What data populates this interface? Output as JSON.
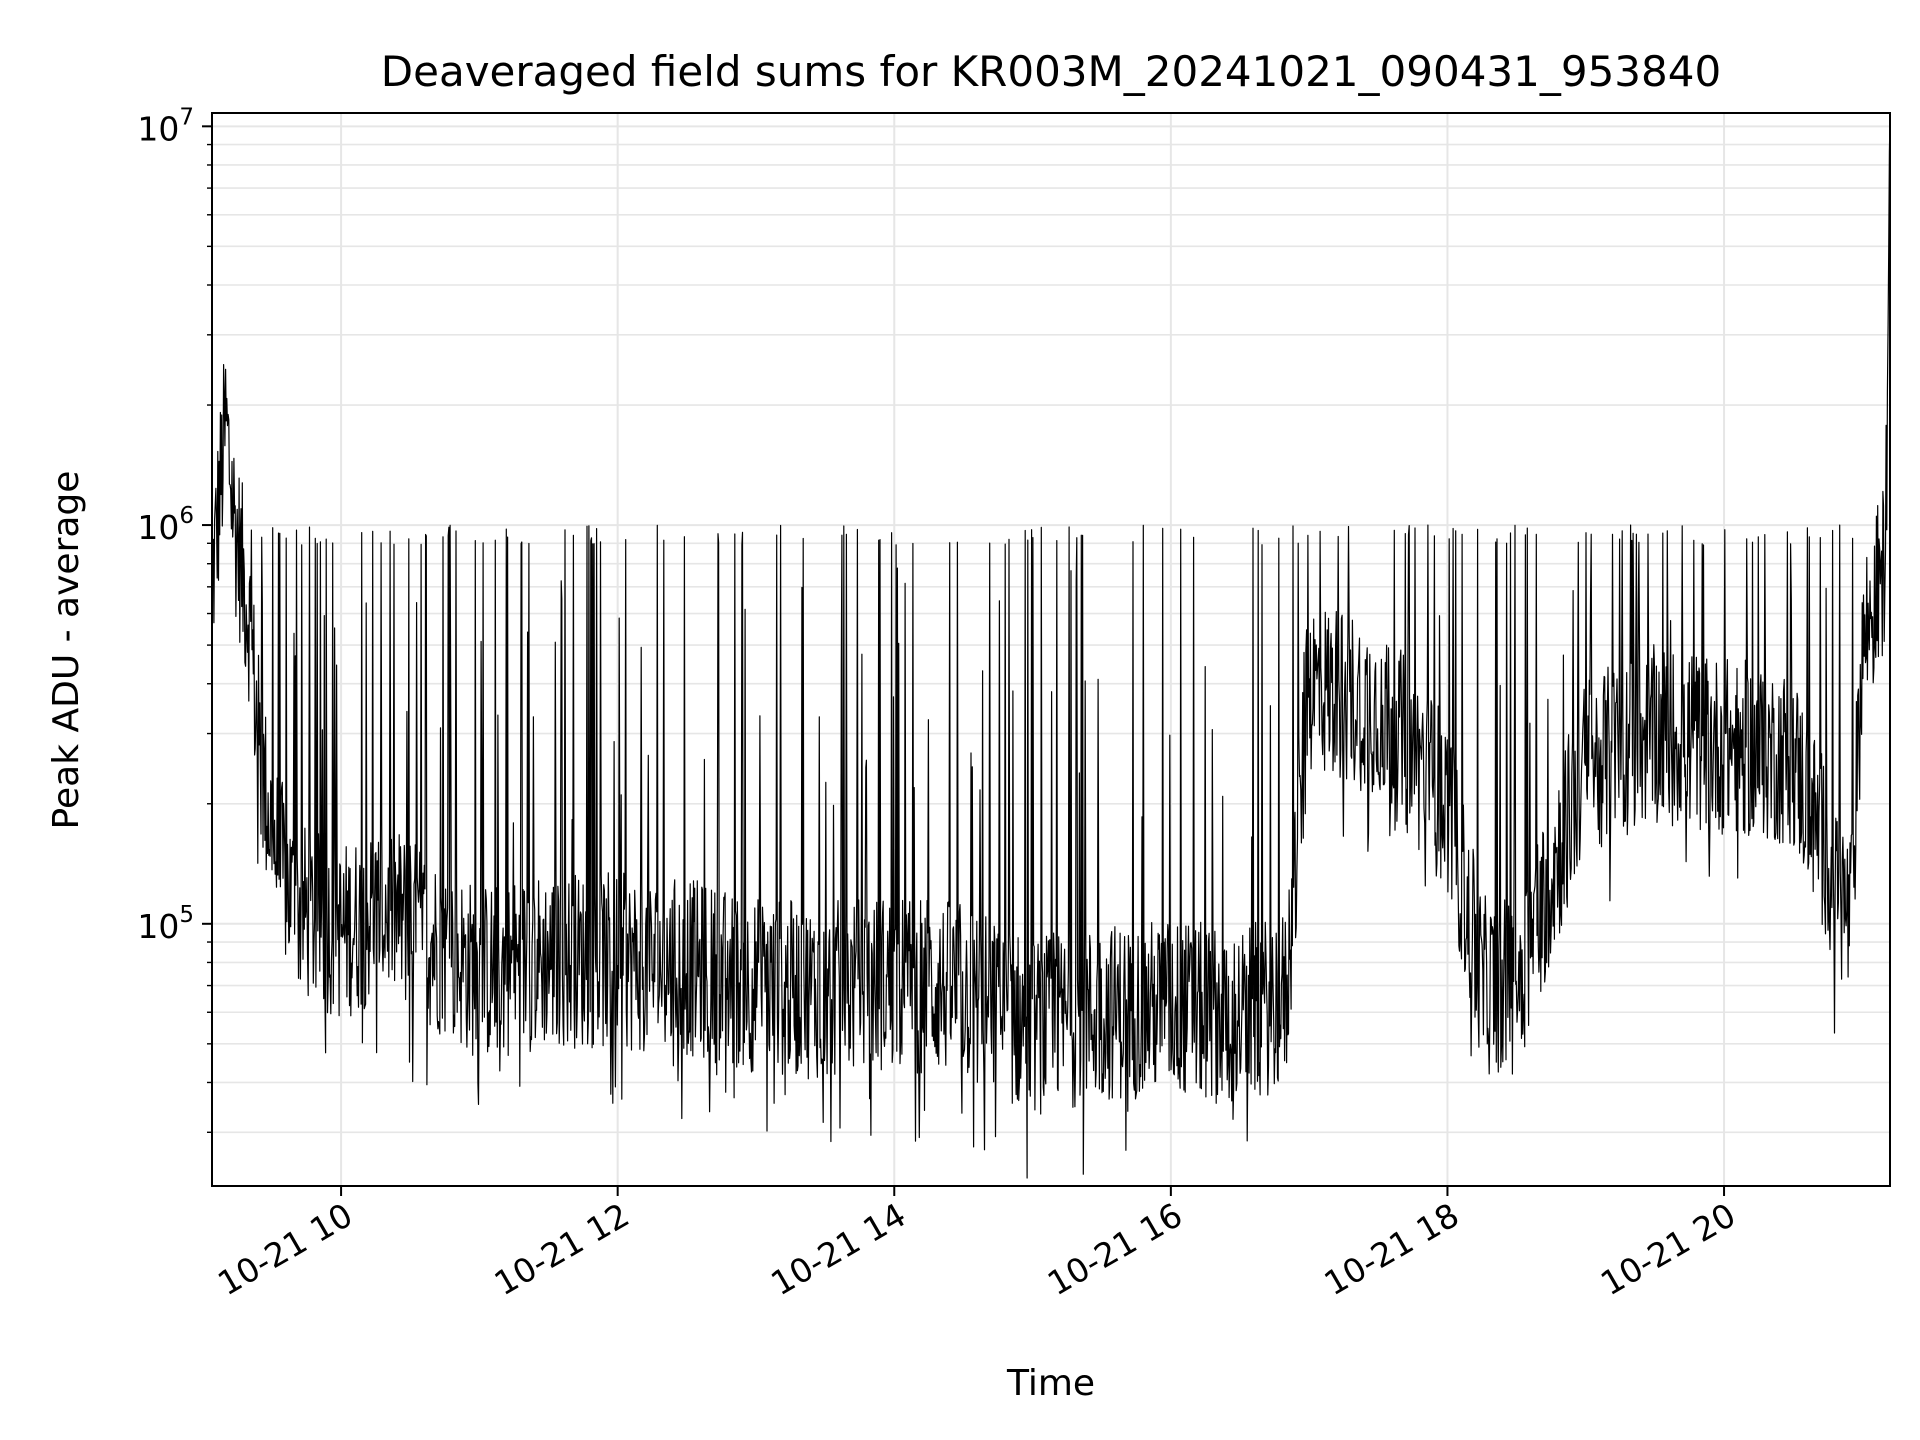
{
  "chart_data": {
    "type": "line",
    "title": "Deaveraged field sums for KR003M_20241021_090431_953840",
    "xlabel": "Time",
    "ylabel": "Peak ADU - average",
    "yscale": "log",
    "ylim": [
      22000,
      10800000
    ],
    "xlim": [
      "2024-10-21 09:04",
      "2024-10-21 21:12"
    ],
    "grid": true,
    "line_color": "#000000",
    "grid_color": "#e6e6e6",
    "x_ticks": [
      {
        "value": "2024-10-21 10:00",
        "label": "10-21 10"
      },
      {
        "value": "2024-10-21 12:00",
        "label": "10-21 12"
      },
      {
        "value": "2024-10-21 14:00",
        "label": "10-21 14"
      },
      {
        "value": "2024-10-21 16:00",
        "label": "10-21 16"
      },
      {
        "value": "2024-10-21 18:00",
        "label": "10-21 18"
      },
      {
        "value": "2024-10-21 20:00",
        "label": "10-21 20"
      }
    ],
    "y_ticks": [
      {
        "value": 100000,
        "base": "10",
        "exp": "5"
      },
      {
        "value": 1000000,
        "base": "10",
        "exp": "6"
      },
      {
        "value": 10000000,
        "base": "10",
        "exp": "7"
      }
    ],
    "series": [
      {
        "x": [
          "2024-10-21 09:04",
          "2024-10-21 09:10",
          "2024-10-21 09:14",
          "2024-10-21 09:20",
          "2024-10-21 09:25",
          "2024-10-21 09:32",
          "2024-10-21 09:40",
          "2024-10-21 10:00",
          "2024-10-21 10:20",
          "2024-10-21 10:40",
          "2024-10-21 11:00",
          "2024-10-21 11:30",
          "2024-10-21 12:00",
          "2024-10-21 12:30",
          "2024-10-21 13:00",
          "2024-10-21 13:30",
          "2024-10-21 14:00",
          "2024-10-21 14:30",
          "2024-10-21 15:00",
          "2024-10-21 15:30",
          "2024-10-21 16:00",
          "2024-10-21 16:30",
          "2024-10-21 16:50",
          "2024-10-21 17:00",
          "2024-10-21 17:30",
          "2024-10-21 18:00",
          "2024-10-21 18:15",
          "2024-10-21 18:30",
          "2024-10-21 19:00",
          "2024-10-21 19:30",
          "2024-10-21 20:00",
          "2024-10-21 20:30",
          "2024-10-21 20:55",
          "2024-10-21 21:00",
          "2024-10-21 21:10",
          "2024-10-21 21:12"
        ],
        "y": [
          700000,
          1800000,
          1000000,
          600000,
          250000,
          150000,
          110000,
          95000,
          110000,
          90000,
          75000,
          82000,
          80000,
          78000,
          70000,
          68000,
          72000,
          68000,
          55000,
          60000,
          62000,
          58000,
          65000,
          400000,
          350000,
          200000,
          70000,
          70000,
          250000,
          300000,
          280000,
          260000,
          100000,
          500000,
          800000,
          8500000
        ],
        "spike_max": 1000000
      }
    ]
  }
}
